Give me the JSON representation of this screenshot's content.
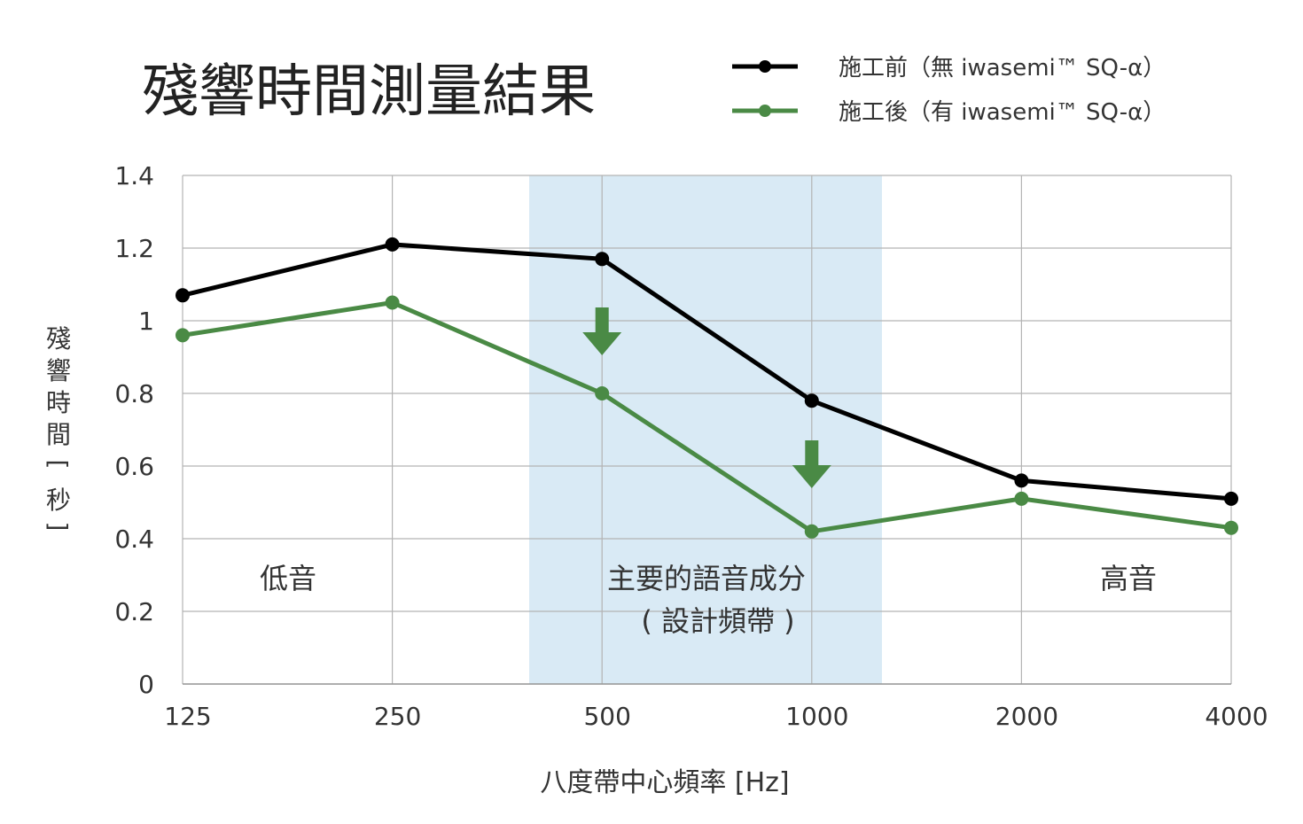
{
  "chart_data": {
    "type": "line",
    "title": "殘響時間測量結果",
    "xlabel": "八度帶中心頻率 [Hz]",
    "ylabel": [
      "殘",
      "響",
      "時",
      "間",
      "[",
      "秒",
      "]"
    ],
    "categories": [
      "125",
      "250",
      "500",
      "1000",
      "2000",
      "4000"
    ],
    "yticks": [
      "0",
      "0.2",
      "0.4",
      "0.6",
      "0.8",
      "1",
      "1.2",
      "1.4"
    ],
    "ylim": [
      0,
      1.4
    ],
    "grid": true,
    "legend_position": "top-right",
    "series": [
      {
        "name": "施工前（無 iwasemi™ SQ-α）",
        "color": "#000000",
        "values": [
          1.07,
          1.21,
          1.17,
          0.78,
          0.56,
          0.51
        ]
      },
      {
        "name": "施工後（有 iwasemi™ SQ-α）",
        "color": "#4a8a45",
        "values": [
          0.96,
          1.05,
          0.8,
          0.42,
          0.51,
          0.43
        ]
      }
    ],
    "highlight_band": {
      "from_category": "500",
      "to_category": "1000",
      "color": "#d9eaf5"
    },
    "annotations": {
      "low": "低音",
      "main_line1": "主要的語音成分",
      "main_line2": "( 設計頻帶 )",
      "high": "高音"
    },
    "arrow_color": "#4a8a45"
  }
}
